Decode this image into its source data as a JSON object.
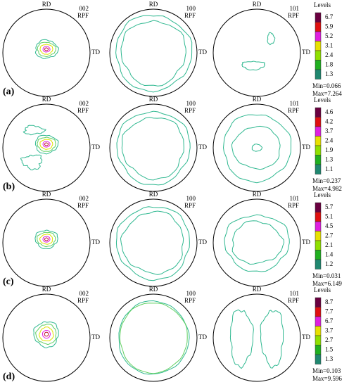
{
  "rows": [
    {
      "label": "(a)",
      "panels": [
        {
          "rd": "RD",
          "td": "TD",
          "pole": "002",
          "rpf": "RPF"
        },
        {
          "rd": "RD",
          "td": "TD",
          "pole": "100",
          "rpf": "RPF"
        },
        {
          "rd": "RD",
          "td": "TD",
          "pole": "101",
          "rpf": "RPF"
        }
      ],
      "legend": {
        "title": "Levels",
        "levels": [
          "6.7",
          "5.9",
          "5.2",
          "3.1",
          "2.4",
          "1.8",
          "1.3"
        ],
        "min": "Min=0.066",
        "max": "Max=7.264"
      }
    },
    {
      "label": "(b)",
      "panels": [
        {
          "rd": "RD",
          "td": "TD",
          "pole": "002",
          "rpf": "RPF"
        },
        {
          "rd": "RD",
          "td": "TD",
          "pole": "100",
          "rpf": "RPF"
        },
        {
          "rd": "RD",
          "td": "TD",
          "pole": "101",
          "rpf": "RPF"
        }
      ],
      "legend": {
        "title": "Levels",
        "levels": [
          "4.6",
          "4.2",
          "3.7",
          "2.4",
          "1.9",
          "1.3",
          "1.1"
        ],
        "min": "Min=0.237",
        "max": "Max=4.982"
      }
    },
    {
      "label": "(c)",
      "panels": [
        {
          "rd": "RD",
          "td": "TD",
          "pole": "002",
          "rpf": "RPF"
        },
        {
          "rd": "RD",
          "td": "TD",
          "pole": "100",
          "rpf": "RPF"
        },
        {
          "rd": "RD",
          "td": "TD",
          "pole": "101",
          "rpf": "RPF"
        }
      ],
      "legend": {
        "title": "Levels",
        "levels": [
          "5.7",
          "5.1",
          "4.5",
          "2.7",
          "2.1",
          "1.4",
          "1.2"
        ],
        "min": "Min=0.031",
        "max": "Max=6.149"
      }
    },
    {
      "label": "(d)",
      "panels": [
        {
          "rd": "RD",
          "td": "TD",
          "pole": "002",
          "rpf": "RPF"
        },
        {
          "rd": "RD",
          "td": "TD",
          "pole": "100",
          "rpf": "RPF"
        },
        {
          "rd": "RD",
          "td": "TD",
          "pole": "101",
          "rpf": "RPF"
        }
      ],
      "legend": {
        "title": "Levels",
        "levels": [
          "8.7",
          "7.7",
          "6.7",
          "3.7",
          "2.7",
          "1.5",
          "1.3"
        ],
        "min": "Min=0.103",
        "max": "Max=9.596"
      }
    }
  ]
}
